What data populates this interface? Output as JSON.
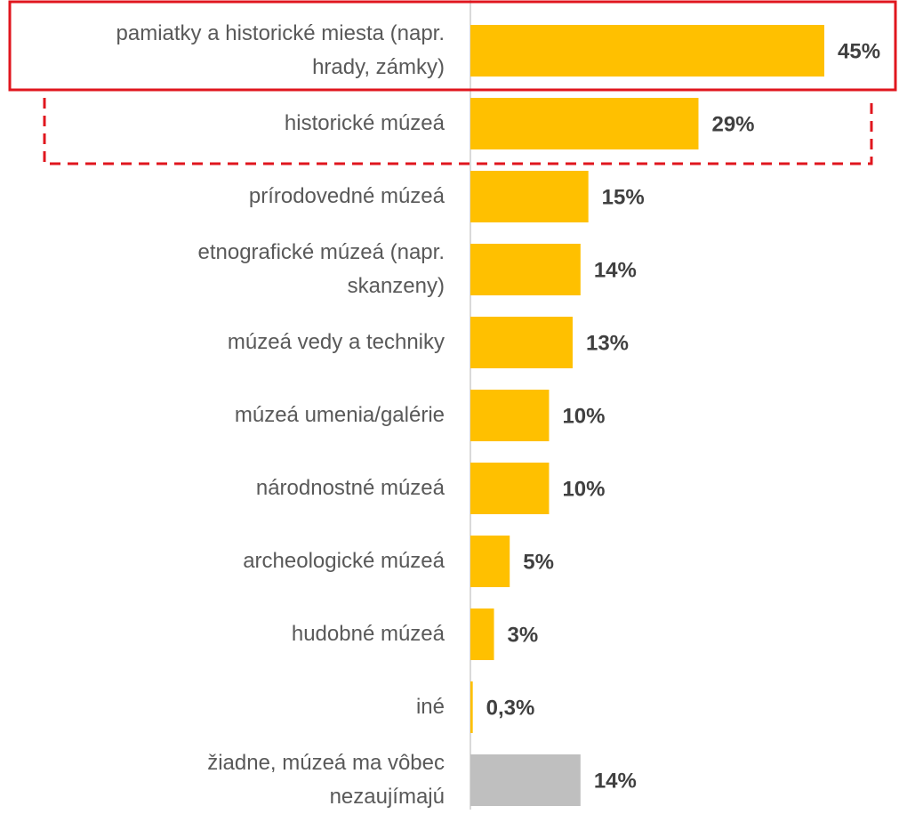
{
  "chart_data": {
    "type": "bar",
    "orientation": "horizontal",
    "categories": [
      "pamiatky a historické miesta (napr.\nhrady, zámky)",
      "historické múzeá",
      "prírodovedné múzeá",
      "etnografické múzeá (napr.\nskanzeny)",
      "múzeá vedy a techniky",
      "múzeá umenia/galérie",
      "národnostné múzeá",
      "archeologické múzeá",
      "hudobné múzeá",
      "iné",
      "žiadne, múzeá ma vôbec\nnezaujímajú"
    ],
    "values": [
      45,
      29,
      15,
      14,
      13,
      10,
      10,
      5,
      3,
      0.3,
      14
    ],
    "value_labels": [
      "45%",
      "29%",
      "15%",
      "14%",
      "13%",
      "10%",
      "10%",
      "5%",
      "3%",
      "0,3%",
      "14%"
    ],
    "colors": [
      "#ffc000",
      "#ffc000",
      "#ffc000",
      "#ffc000",
      "#ffc000",
      "#ffc000",
      "#ffc000",
      "#ffc000",
      "#ffc000",
      "#ffc000",
      "#bfbfbf"
    ]
  }
}
